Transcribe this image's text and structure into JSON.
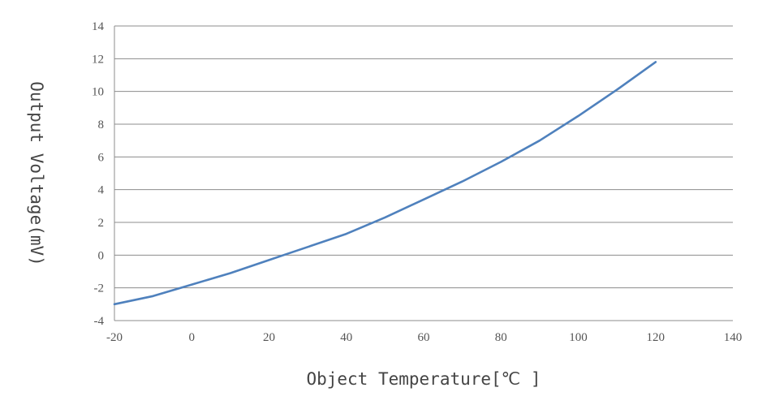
{
  "chart_data": {
    "type": "line",
    "title": "",
    "xlabel": "Object Temperature[℃ ]",
    "ylabel": "Output Voltage(mV)",
    "xlim": [
      -20,
      140
    ],
    "ylim": [
      -4,
      14
    ],
    "x_ticks": [
      "-20",
      "0",
      "20",
      "40",
      "60",
      "80",
      "100",
      "120",
      "140"
    ],
    "y_ticks": [
      "14",
      "12",
      "10",
      "8",
      "6",
      "4",
      "2",
      "0",
      "-2",
      "-4"
    ],
    "grid": "horizontal",
    "legend": "none",
    "series": [
      {
        "color": "#4f81bd",
        "x": [
          -20,
          -10,
          0,
          10,
          20,
          25,
          30,
          40,
          50,
          60,
          70,
          80,
          90,
          100,
          110,
          120
        ],
        "y": [
          -3.0,
          -2.5,
          -1.8,
          -1.1,
          -0.3,
          0.1,
          0.5,
          1.3,
          2.3,
          3.4,
          4.5,
          5.7,
          7.0,
          8.5,
          10.1,
          11.8
        ]
      }
    ]
  }
}
